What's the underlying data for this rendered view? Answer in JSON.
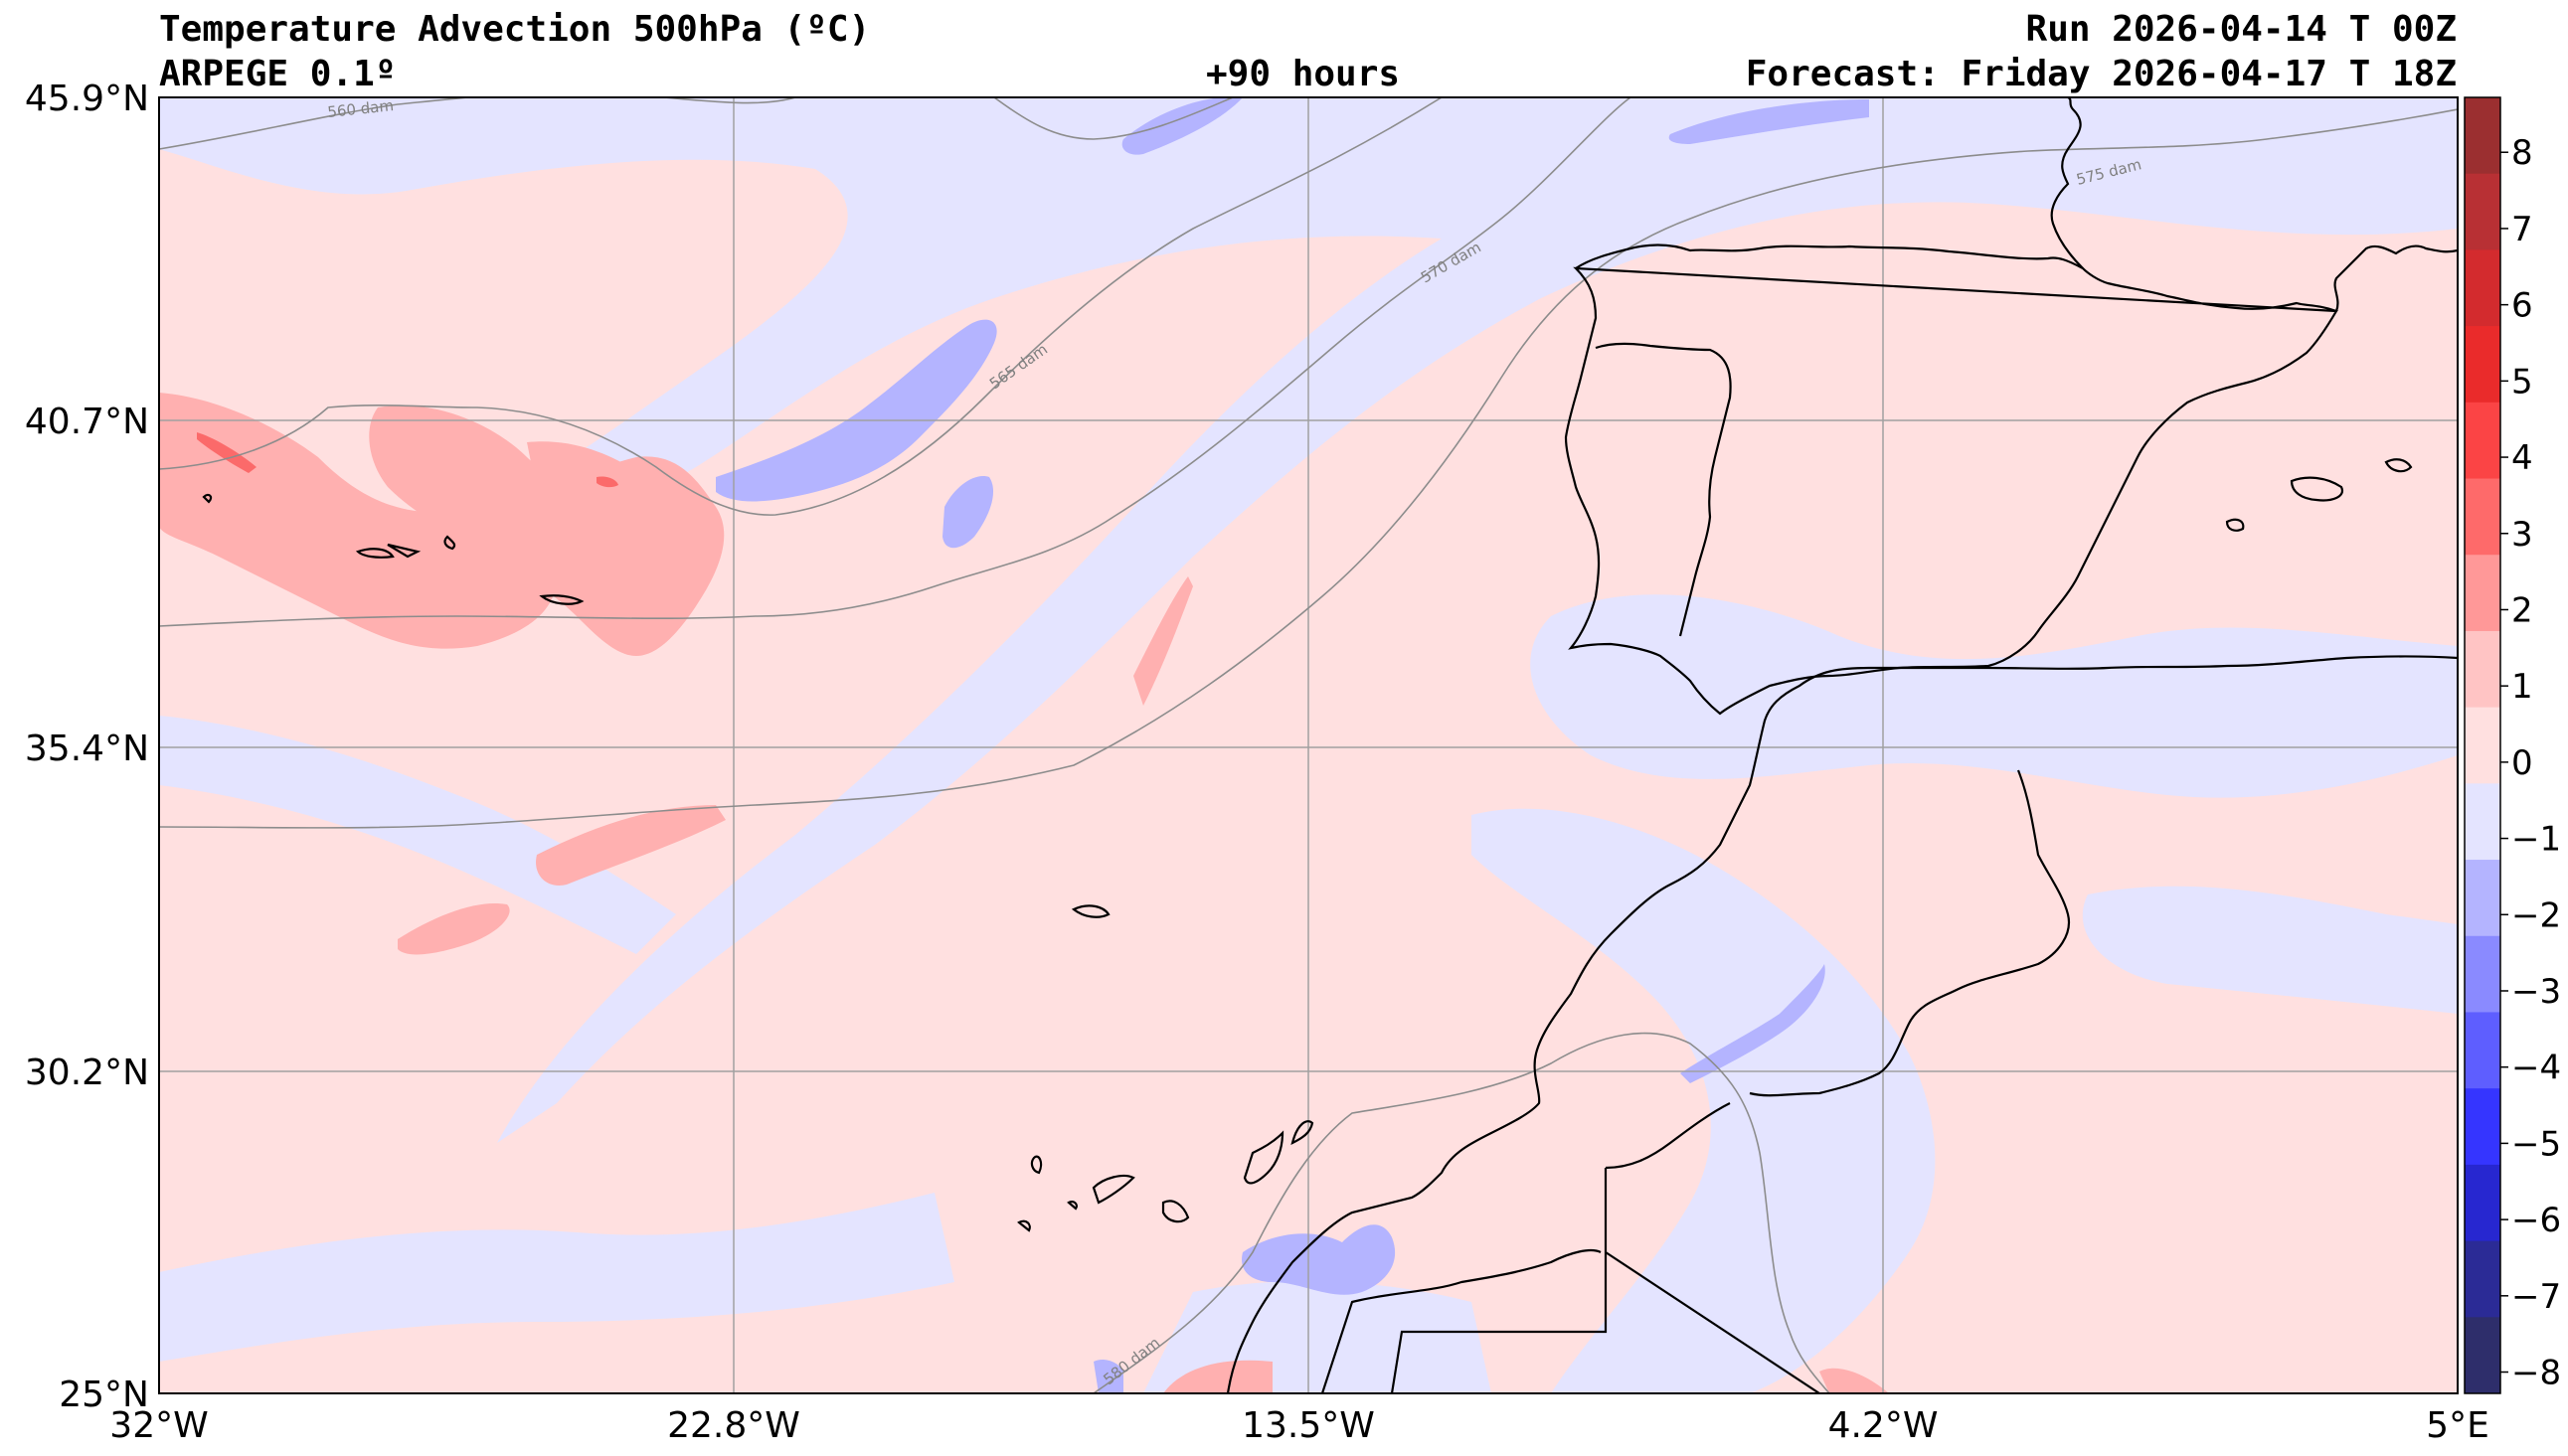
{
  "header": {
    "title": "Temperature Advection  500hPa (ºC)",
    "model": "ARPEGE 0.1º",
    "lead_time": "+90 hours",
    "run": "Run 2026-04-14 T 00Z",
    "forecast": "Forecast: Friday 2026-04-17 T 18Z"
  },
  "axes": {
    "lat_labels": [
      "45.9°N",
      "40.7°N",
      "35.4°N",
      "30.2°N",
      "25°N"
    ],
    "lon_labels": [
      "32°W",
      "22.8°W",
      "13.5°W",
      "4.2°W",
      "5°E"
    ]
  },
  "contours": {
    "labels": [
      "560 dam",
      "565 dam",
      "570 dam",
      "575 dam",
      "580 dam"
    ]
  },
  "colorbar": {
    "ticks": [
      "8",
      "7",
      "6",
      "5",
      "4",
      "3",
      "2",
      "1",
      "0",
      "−1",
      "−2",
      "−3",
      "−4",
      "−5",
      "−6",
      "−7",
      "−8"
    ],
    "colors": [
      "#9b2f30",
      "#b83034",
      "#d32b2e",
      "#ea2b2b",
      "#fb4445",
      "#fe6a6a",
      "#ff9898",
      "#ffc4c4",
      "#ffe0e0",
      "#e4e4ff",
      "#b4b4ff",
      "#8a8aff",
      "#5e5eff",
      "#3535ff",
      "#2727d0",
      "#2b2b96",
      "#2e2e6b"
    ]
  },
  "colors": {
    "warm_weak": "#ffe0e0",
    "warm_moderate": "#ffb0b0",
    "warm_strong": "#fb6a6a",
    "cold_weak": "#e4e4ff",
    "cold_moderate": "#b4b4ff",
    "coastline": "#000000",
    "contour": "#8c8c8c",
    "grid": "#a0a0a0"
  }
}
